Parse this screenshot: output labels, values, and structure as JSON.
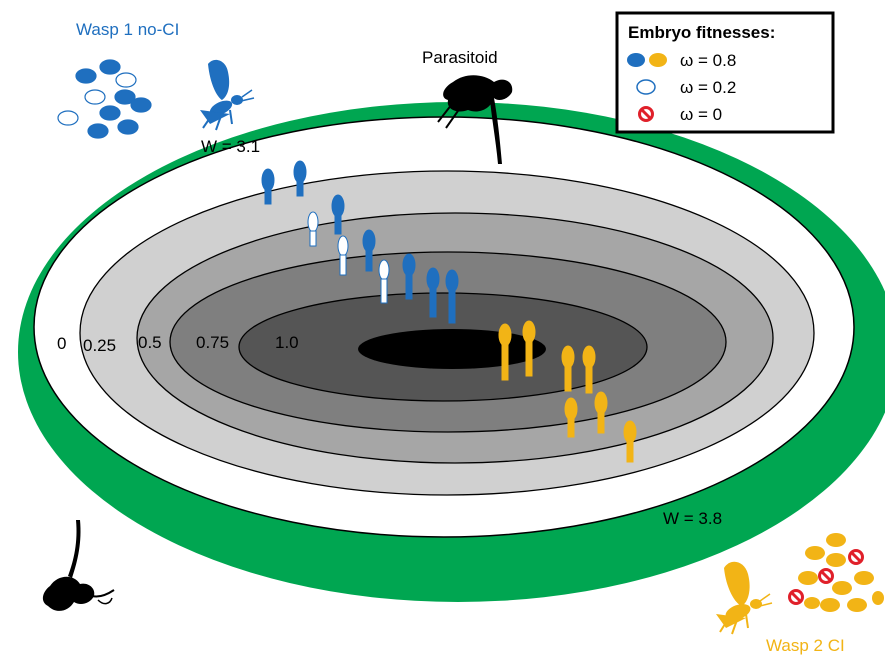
{
  "wasp1": {
    "title": "Wasp 1 no-CI",
    "fitness": "W = 3.1",
    "color": "#1f6fbf"
  },
  "wasp2": {
    "title": "Wasp 2 CI",
    "fitness": "W = 3.8",
    "color": "#f2b416"
  },
  "parasitoid": {
    "label": "Parasitoid"
  },
  "legend": {
    "title": "Embryo fitnesses:",
    "items": [
      {
        "symbol": "filled-eggs",
        "label": "ω = 0.8"
      },
      {
        "symbol": "hollow-egg",
        "label": "ω = 0.2"
      },
      {
        "symbol": "prohibited-egg",
        "label": "ω = 0"
      }
    ]
  },
  "zones": {
    "labels": [
      "0",
      "0.25",
      "0.5",
      "0.75",
      "1.0"
    ]
  },
  "colors": {
    "ring_green": "#00a651",
    "zone_0": "#ffffff",
    "zone_025": "#d0d0d0",
    "zone_05": "#a6a6a6",
    "zone_075": "#7f7f7f",
    "zone_1": "#555555",
    "core": "#000000",
    "prohibited": "#e0202a"
  },
  "icons": {
    "wasp1_icon": "blue-wasp-icon",
    "wasp2_icon": "yellow-wasp-icon",
    "parasitoid_icon": "parasitoid-silhouette-icon"
  }
}
